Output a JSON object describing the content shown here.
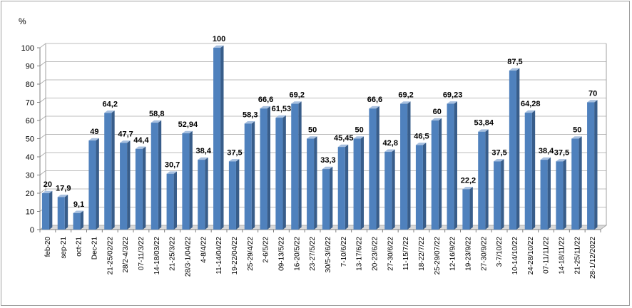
{
  "chart_data": {
    "type": "bar",
    "ylabel": "%",
    "ylim": [
      0,
      100
    ],
    "yticks": [
      "0",
      "10",
      "20",
      "30",
      "40",
      "50",
      "60",
      "70",
      "80",
      "90",
      "100"
    ],
    "grid": true,
    "colors": {
      "bar": "#4f81bd",
      "bar_dark": "#385d8a",
      "bar_top": "#a7c0e0"
    },
    "categories": [
      "feb-20",
      "sep-21",
      "oct-21",
      "Dec-21",
      "21-25/02/22",
      "28/2-4/3/22",
      "07-11/3/22",
      "14-18/03/22",
      "21-25/3/22",
      "28/3-1/04/22",
      "4-8/4/22",
      "11-14/04/22",
      "19-22/04/22",
      "25-29/4/22",
      "2-6/5/22",
      "09-13/5/22",
      "16-20/5/22",
      "23-27/5/22",
      "30/5-3/6/22",
      "7-10/6/22",
      "13-17/6/22",
      "20-23/6/22",
      "27-30/6/22",
      "11-15/7/22",
      "18-22/7/22",
      "25-29/07/22",
      "12-16/9/22",
      "19-23/9/22",
      "27-30/9/22",
      "3-7/10/22",
      "10-14/10/22",
      "24-28/10/22",
      "07-11/11/22",
      "14-18/11/22",
      "21-25/11/22",
      "28-1/12/2022"
    ],
    "values": [
      20,
      17.9,
      9.1,
      49,
      64.2,
      47.7,
      44.4,
      58.8,
      30.7,
      52.94,
      38.4,
      100,
      37.5,
      58.3,
      66.6,
      61.53,
      69.2,
      50,
      33.3,
      45.45,
      50,
      66.6,
      42.8,
      69.2,
      46.5,
      60,
      69.23,
      22.2,
      53.84,
      37.5,
      87.5,
      64.28,
      38.4,
      37.5,
      50,
      70
    ],
    "labels": [
      "20",
      "17,9",
      "9,1",
      "49",
      "64,2",
      "47,7",
      "44,4",
      "58,8",
      "30,7",
      "52,94",
      "38,4",
      "100",
      "37,5",
      "58,3",
      "66,6",
      "61,53",
      "69,2",
      "50",
      "33,3",
      "45,45",
      "50",
      "66,6",
      "42,8",
      "69,2",
      "46,5",
      "60",
      "69,23",
      "22,2",
      "53,84",
      "37,5",
      "87,5",
      "64,28",
      "38,4",
      "37,5",
      "50",
      "70"
    ]
  }
}
